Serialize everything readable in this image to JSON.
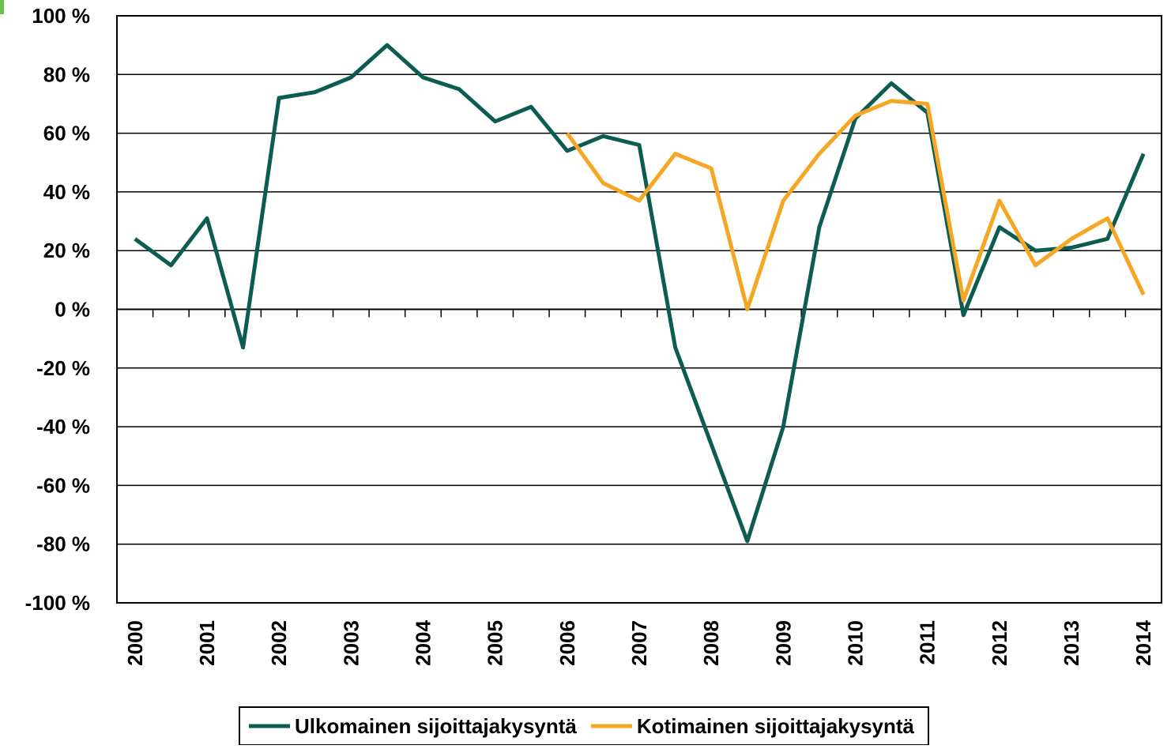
{
  "chart_data": {
    "type": "line",
    "categories": [
      "2000",
      null,
      "2001",
      null,
      "2002",
      null,
      "2003",
      null,
      "2004",
      null,
      "2005",
      null,
      "2006",
      null,
      "2007",
      null,
      "2008",
      null,
      "2009",
      null,
      "2010",
      null,
      "2011",
      null,
      "2012",
      null,
      "2013",
      null,
      "2014"
    ],
    "series": [
      {
        "name": "Ulkomainen sijoittajakysyntä",
        "color": "#0d5c52",
        "values": [
          24,
          15,
          31,
          -13,
          72,
          74,
          79,
          90,
          79,
          75,
          64,
          69,
          54,
          59,
          56,
          -13,
          -46,
          -79,
          -40,
          28,
          65,
          77,
          67,
          -2,
          28,
          20,
          21,
          24,
          53
        ]
      },
      {
        "name": "Kotimainen sijoittajakysyntä",
        "color": "#f5a623",
        "values": [
          null,
          null,
          null,
          null,
          null,
          null,
          null,
          null,
          null,
          null,
          null,
          null,
          60,
          43,
          37,
          53,
          48,
          0,
          37,
          53,
          66,
          71,
          70,
          3,
          37,
          15,
          24,
          31,
          5
        ]
      }
    ],
    "ylim": [
      -100,
      100
    ],
    "yticks": [
      {
        "value": -100,
        "label": "-100 %"
      },
      {
        "value": -80,
        "label": "-80 %"
      },
      {
        "value": -60,
        "label": "-60 %"
      },
      {
        "value": -40,
        "label": "-40 %"
      },
      {
        "value": -20,
        "label": "-20 %"
      },
      {
        "value": 0,
        "label": "0 %"
      },
      {
        "value": 20,
        "label": "20 %"
      },
      {
        "value": 40,
        "label": "40 %"
      },
      {
        "value": 60,
        "label": "60 %"
      },
      {
        "value": 80,
        "label": "80 %"
      },
      {
        "value": 100,
        "label": "100 %"
      }
    ],
    "grid": true,
    "legend": "bottom"
  }
}
